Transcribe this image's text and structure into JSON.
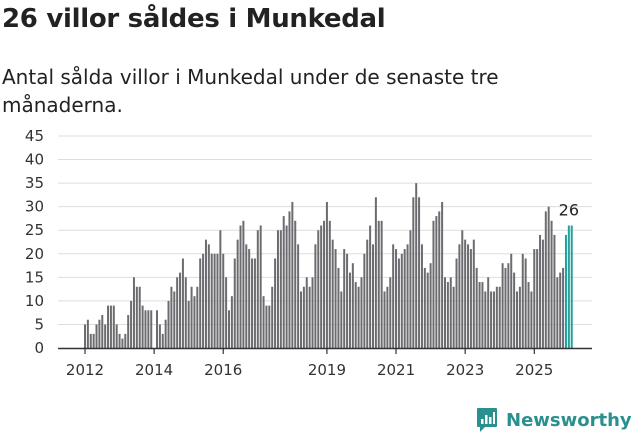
{
  "title": "26 villor såldes i Munkedal",
  "subtitle": "Antal sålda villor i Munkedal under de senaste tre månaderna.",
  "brand": "Newsworthy",
  "colors": {
    "bar": "#6c6b70",
    "highlight": "#21a19a",
    "brand": "#2a8f8f",
    "grid": "#dddddd",
    "axis": "#333333"
  },
  "chart_data": {
    "type": "bar",
    "title": "26 villor såldes i Munkedal",
    "subtitle": "Antal sålda villor i Munkedal under de senaste tre månaderna.",
    "xlabel": "",
    "ylabel": "",
    "ylim": [
      0,
      45
    ],
    "yticks": [
      0,
      5,
      10,
      15,
      20,
      25,
      30,
      35,
      40,
      45
    ],
    "xtick_labels": [
      "2012",
      "2014",
      "2016",
      "2019",
      "2021",
      "2023",
      "2025"
    ],
    "x_start_year": 2012,
    "grid": true,
    "last_value_label": "26",
    "values": [
      5,
      6,
      3,
      3,
      5,
      6,
      7,
      5,
      9,
      9,
      9,
      5,
      3,
      2,
      3,
      7,
      10,
      15,
      13,
      13,
      9,
      8,
      8,
      8,
      0,
      8,
      5,
      3,
      6,
      10,
      13,
      12,
      15,
      16,
      19,
      15,
      10,
      13,
      11,
      13,
      19,
      20,
      23,
      22,
      20,
      20,
      20,
      25,
      20,
      15,
      8,
      11,
      19,
      23,
      26,
      27,
      22,
      21,
      19,
      19,
      25,
      26,
      11,
      9,
      9,
      13,
      19,
      25,
      25,
      28,
      26,
      29,
      31,
      27,
      22,
      12,
      13,
      15,
      13,
      15,
      22,
      25,
      26,
      27,
      31,
      27,
      23,
      21,
      17,
      12,
      21,
      20,
      16,
      18,
      14,
      13,
      15,
      20,
      23,
      26,
      22,
      32,
      27,
      27,
      12,
      13,
      15,
      22,
      21,
      19,
      20,
      21,
      22,
      25,
      32,
      35,
      32,
      22,
      17,
      16,
      18,
      27,
      28,
      29,
      31,
      15,
      14,
      15,
      13,
      19,
      22,
      25,
      23,
      22,
      21,
      23,
      17,
      14,
      14,
      12,
      15,
      12,
      12,
      13,
      13,
      18,
      17,
      18,
      20,
      16,
      12,
      13,
      20,
      19,
      14,
      12,
      21,
      21,
      24,
      23,
      29,
      30,
      27,
      24,
      15,
      16,
      17,
      24,
      26,
      26
    ],
    "highlight_last_n": 3
  }
}
